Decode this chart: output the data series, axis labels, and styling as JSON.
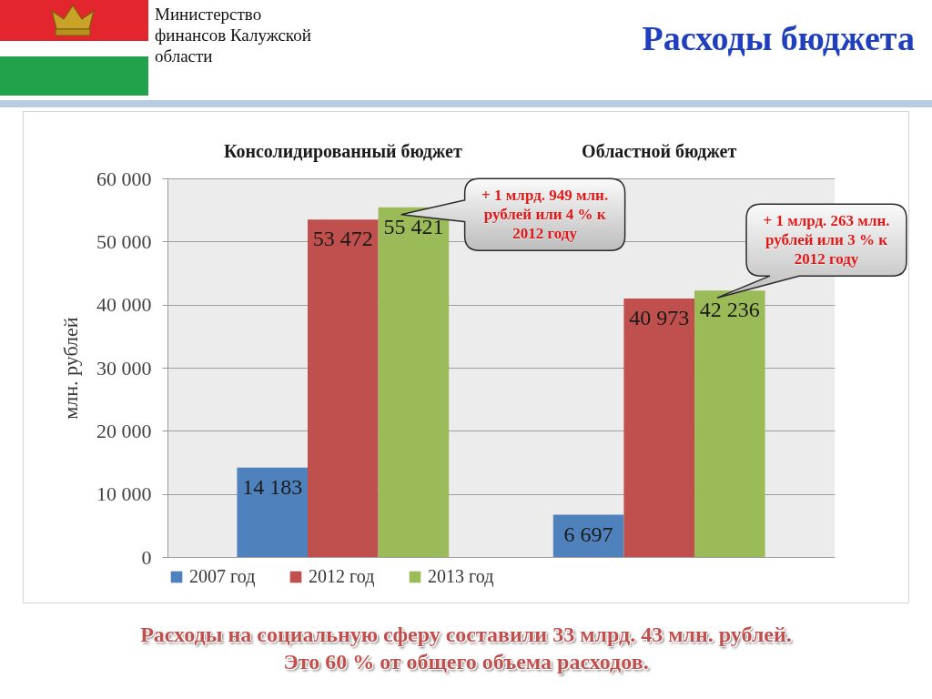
{
  "chart_data": {
    "type": "bar",
    "title": "Расходы бюджета",
    "ylabel": "млн. рублей",
    "categories": [
      "Консолидированный бюджет",
      "Областной бюджет"
    ],
    "series": [
      {
        "name": "2007 год",
        "color": "#4f81bd",
        "values": [
          14183,
          6697
        ],
        "value_labels": [
          "14 183",
          "6 697"
        ]
      },
      {
        "name": "2012 год",
        "color": "#c0504d",
        "values": [
          53472,
          40973
        ],
        "value_labels": [
          "53 472",
          "40 973"
        ]
      },
      {
        "name": "2013 год",
        "color": "#9bbb59",
        "values": [
          55421,
          42236
        ],
        "value_labels": [
          "55 421",
          "42 236"
        ]
      }
    ],
    "ylim": [
      0,
      60000
    ],
    "yticks": [
      0,
      {
        "value": 10000,
        "label": "10 000"
      },
      {
        "value": 20000,
        "label": "20 000"
      },
      {
        "value": 30000,
        "label": "30 000"
      },
      {
        "value": 40000,
        "label": "40 000"
      },
      {
        "value": 50000,
        "label": "50 000"
      },
      {
        "value": 60000,
        "label": "60 000"
      }
    ],
    "grid": "y",
    "legend": "bottom",
    "annotations": [
      "Министерство финансов Калужской области",
      "+ 1 млрд. 949 млн. рублей или 4 % к 2012 году",
      "+ 1 млрд. 263 млн. рублей или 3 % к 2012 году",
      "Расходы на социальную сферу составили 33 млрд. 43 млн. рублей.",
      "Это 60 % от общего объема расходов."
    ]
  }
}
